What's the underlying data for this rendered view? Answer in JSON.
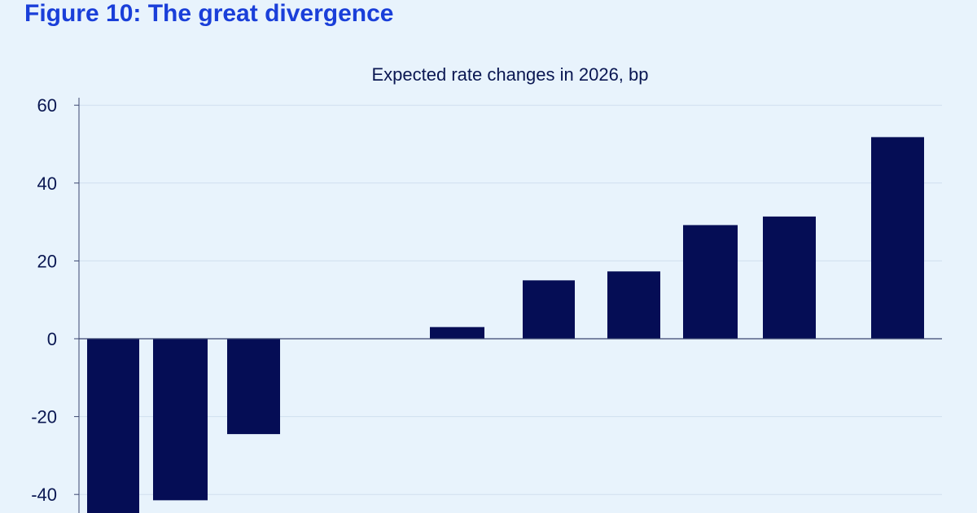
{
  "figure": {
    "title": "Figure 10: The great divergence"
  },
  "colors": {
    "background": "#e8f3fc",
    "title": "#1a3fd9",
    "bar": "#050d55",
    "text": "#0a1752",
    "grid": "#cfe0ef",
    "axis": "#3a4670"
  },
  "chart_data": {
    "type": "bar",
    "title": "Expected rate changes in 2026, bp",
    "xlabel": "",
    "ylabel": "",
    "categories": [
      "",
      "",
      "",
      "",
      "",
      "",
      "",
      "",
      "",
      "",
      ""
    ],
    "values": [
      -46,
      -41.5,
      -24.5,
      0,
      0,
      3,
      15,
      17.3,
      29.2,
      31.4,
      51.8
    ],
    "ylim": [
      -44,
      60
    ],
    "yticks": [
      60,
      40,
      20,
      0,
      -20,
      -40
    ],
    "grid": true,
    "legend": "none"
  }
}
